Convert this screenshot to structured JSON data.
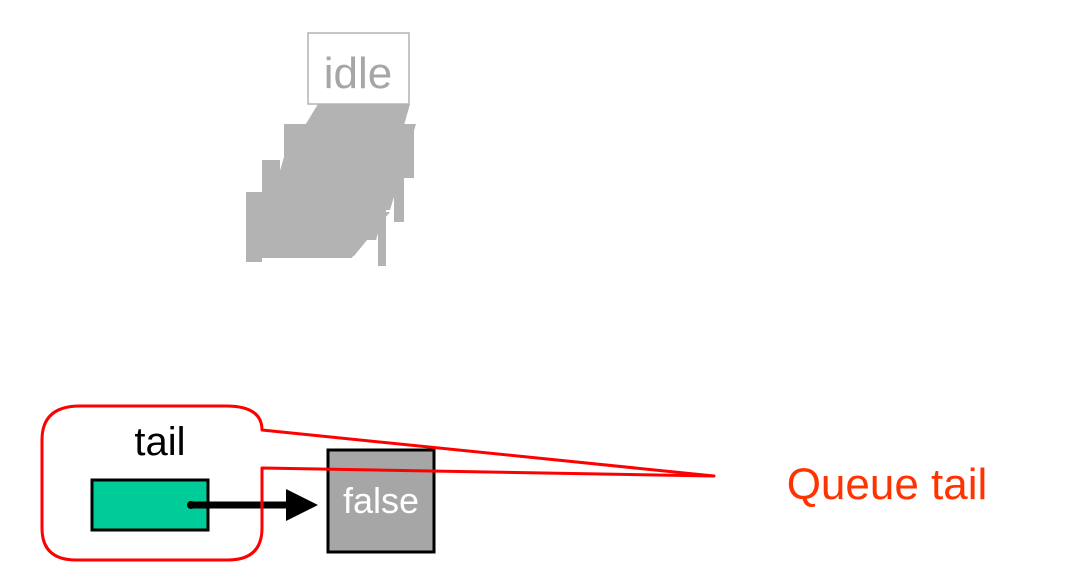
{
  "diagram": {
    "idle_label": "idle",
    "tail_label": "tail",
    "node_value": "false",
    "callout_label": "Queue tail"
  },
  "colors": {
    "idle_gray": "#b3b3b3",
    "idle_text": "#a6a6a6",
    "tail_fill": "#00cc99",
    "node_fill": "#a6a6a6",
    "callout_red": "#ff0000",
    "callout_text": "#ff3300",
    "ink": "#000000"
  }
}
